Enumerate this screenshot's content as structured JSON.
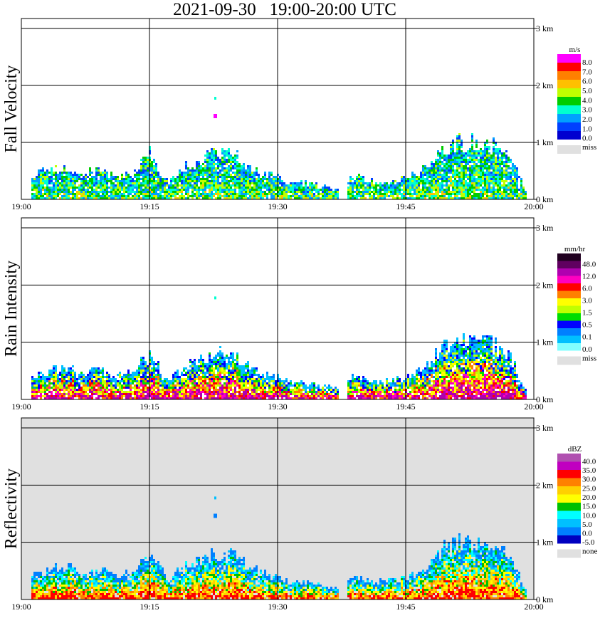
{
  "title": "2021-09-30   19:00-20:00 UTC",
  "chart_data": [
    {
      "type": "heatmap",
      "ylabel": "Fall Velocity",
      "x_ticks": [
        "19:00",
        "19:15",
        "19:30",
        "19:45",
        "20:00"
      ],
      "y_ticks": [
        "0 km",
        "1 km",
        "2 km",
        "3 km"
      ],
      "ylim": [
        0,
        3.0
      ],
      "grid": true,
      "background": "#ffffff",
      "colorbar": {
        "unit": "m/s",
        "labels": [
          "8.0",
          "7.0",
          "6.0",
          "5.0",
          "4.0",
          "3.0",
          "2.0",
          "1.0",
          "0.0"
        ],
        "colors": [
          "#ff00ff",
          "#ff0000",
          "#ff8000",
          "#ffc000",
          "#c0ff00",
          "#00cc00",
          "#00ffd0",
          "#00a0ff",
          "#0040ff",
          "#0000d0"
        ],
        "missing_label": "miss",
        "missing_color": "#e0e0e0"
      },
      "echo_profile": [
        {
          "t": "19:01",
          "top": 0.45
        },
        {
          "t": "19:03",
          "top": 0.55
        },
        {
          "t": "19:05",
          "top": 0.6
        },
        {
          "t": "19:07",
          "top": 0.5
        },
        {
          "t": "19:09",
          "top": 0.55
        },
        {
          "t": "19:11",
          "top": 0.45
        },
        {
          "t": "19:13",
          "top": 0.5
        },
        {
          "t": "19:15",
          "top": 0.85
        },
        {
          "t": "19:17",
          "top": 0.35
        },
        {
          "t": "19:19",
          "top": 0.6
        },
        {
          "t": "19:21",
          "top": 0.75
        },
        {
          "t": "19:23",
          "top": 0.85
        },
        {
          "t": "19:25",
          "top": 0.8
        },
        {
          "t": "19:27",
          "top": 0.55
        },
        {
          "t": "19:29",
          "top": 0.45
        },
        {
          "t": "19:31",
          "top": 0.35
        },
        {
          "t": "19:33",
          "top": 0.3
        },
        {
          "t": "19:35",
          "top": 0.3
        },
        {
          "t": "19:37",
          "top": 0.2
        },
        {
          "t": "19:39",
          "top": 0.45
        },
        {
          "t": "19:41",
          "top": 0.35
        },
        {
          "t": "19:43",
          "top": 0.35
        },
        {
          "t": "19:45",
          "top": 0.4
        },
        {
          "t": "19:47",
          "top": 0.55
        },
        {
          "t": "19:49",
          "top": 0.9
        },
        {
          "t": "19:51",
          "top": 1.05
        },
        {
          "t": "19:53",
          "top": 1.05
        },
        {
          "t": "19:55",
          "top": 1.0
        },
        {
          "t": "19:57",
          "top": 0.85
        },
        {
          "t": "19:59",
          "top": 0.15
        }
      ]
    },
    {
      "type": "heatmap",
      "ylabel": "Rain Intensity",
      "x_ticks": [
        "19:00",
        "19:15",
        "19:30",
        "19:45",
        "20:00"
      ],
      "y_ticks": [
        "0 km",
        "1 km",
        "2 km",
        "3 km"
      ],
      "ylim": [
        0,
        3.0
      ],
      "grid": true,
      "background": "#ffffff",
      "colorbar": {
        "unit": "mm/hr",
        "labels": [
          "48.0",
          "12.0",
          "6.0",
          "3.0",
          "1.5",
          "0.5",
          "0.1",
          "0.0"
        ],
        "colors": [
          "#200020",
          "#600060",
          "#b000b0",
          "#ff00c0",
          "#ff0000",
          "#ff8000",
          "#ffff00",
          "#c0ff00",
          "#00dd00",
          "#0000ff",
          "#0080ff",
          "#00c0ff",
          "#80ffff"
        ],
        "missing_label": "miss",
        "missing_color": "#e0e0e0"
      },
      "echo_profile": [
        {
          "t": "19:01",
          "top": 0.45
        },
        {
          "t": "19:03",
          "top": 0.55
        },
        {
          "t": "19:05",
          "top": 0.6
        },
        {
          "t": "19:07",
          "top": 0.5
        },
        {
          "t": "19:09",
          "top": 0.55
        },
        {
          "t": "19:11",
          "top": 0.45
        },
        {
          "t": "19:13",
          "top": 0.5
        },
        {
          "t": "19:15",
          "top": 0.85
        },
        {
          "t": "19:17",
          "top": 0.35
        },
        {
          "t": "19:19",
          "top": 0.6
        },
        {
          "t": "19:21",
          "top": 0.75
        },
        {
          "t": "19:23",
          "top": 0.85
        },
        {
          "t": "19:25",
          "top": 0.8
        },
        {
          "t": "19:27",
          "top": 0.55
        },
        {
          "t": "19:29",
          "top": 0.45
        },
        {
          "t": "19:31",
          "top": 0.35
        },
        {
          "t": "19:33",
          "top": 0.3
        },
        {
          "t": "19:35",
          "top": 0.3
        },
        {
          "t": "19:37",
          "top": 0.2
        },
        {
          "t": "19:39",
          "top": 0.45
        },
        {
          "t": "19:41",
          "top": 0.35
        },
        {
          "t": "19:43",
          "top": 0.35
        },
        {
          "t": "19:45",
          "top": 0.4
        },
        {
          "t": "19:47",
          "top": 0.55
        },
        {
          "t": "19:49",
          "top": 0.9
        },
        {
          "t": "19:51",
          "top": 1.05
        },
        {
          "t": "19:53",
          "top": 1.05
        },
        {
          "t": "19:55",
          "top": 1.0
        },
        {
          "t": "19:57",
          "top": 0.85
        },
        {
          "t": "19:59",
          "top": 0.15
        }
      ]
    },
    {
      "type": "heatmap",
      "ylabel": "Reflectivity",
      "x_ticks": [
        "19:00",
        "19:15",
        "19:30",
        "19:45",
        "20:00"
      ],
      "y_ticks": [
        "0 km",
        "1 km",
        "2 km",
        "3 km"
      ],
      "ylim": [
        0,
        3.0
      ],
      "grid": true,
      "background": "#e0e0e0",
      "colorbar": {
        "unit": "dBZ",
        "labels": [
          "40.0",
          "35.0",
          "30.0",
          "25.0",
          "20.0",
          "15.0",
          "10.0",
          "5.0",
          "0.0",
          "-5.0"
        ],
        "colors": [
          "#b050b0",
          "#c000c0",
          "#ff0000",
          "#ff8000",
          "#ffd000",
          "#ffff00",
          "#00c000",
          "#00ffff",
          "#00c0ff",
          "#0080ff",
          "#0000c0"
        ],
        "missing_label": "none",
        "missing_color": "#e0e0e0"
      },
      "echo_profile": [
        {
          "t": "19:01",
          "top": 0.45
        },
        {
          "t": "19:03",
          "top": 0.55
        },
        {
          "t": "19:05",
          "top": 0.6
        },
        {
          "t": "19:07",
          "top": 0.5
        },
        {
          "t": "19:09",
          "top": 0.55
        },
        {
          "t": "19:11",
          "top": 0.45
        },
        {
          "t": "19:13",
          "top": 0.5
        },
        {
          "t": "19:15",
          "top": 0.85
        },
        {
          "t": "19:17",
          "top": 0.35
        },
        {
          "t": "19:19",
          "top": 0.6
        },
        {
          "t": "19:21",
          "top": 0.75
        },
        {
          "t": "19:23",
          "top": 0.85
        },
        {
          "t": "19:25",
          "top": 0.8
        },
        {
          "t": "19:27",
          "top": 0.55
        },
        {
          "t": "19:29",
          "top": 0.45
        },
        {
          "t": "19:31",
          "top": 0.35
        },
        {
          "t": "19:33",
          "top": 0.3
        },
        {
          "t": "19:35",
          "top": 0.3
        },
        {
          "t": "19:37",
          "top": 0.2
        },
        {
          "t": "19:39",
          "top": 0.45
        },
        {
          "t": "19:41",
          "top": 0.35
        },
        {
          "t": "19:43",
          "top": 0.35
        },
        {
          "t": "19:45",
          "top": 0.4
        },
        {
          "t": "19:47",
          "top": 0.55
        },
        {
          "t": "19:49",
          "top": 0.9
        },
        {
          "t": "19:51",
          "top": 1.05
        },
        {
          "t": "19:53",
          "top": 1.05
        },
        {
          "t": "19:55",
          "top": 1.0
        },
        {
          "t": "19:57",
          "top": 0.85
        },
        {
          "t": "19:59",
          "top": 0.15
        }
      ]
    }
  ]
}
